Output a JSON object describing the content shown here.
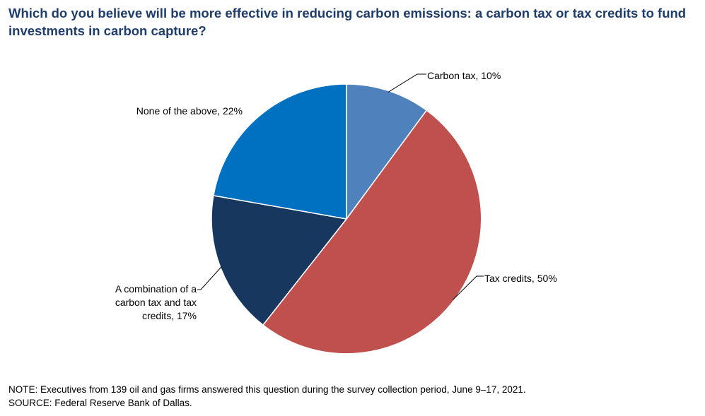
{
  "chart_data": {
    "type": "pie",
    "title": "Which do you believe will be more effective in reducing carbon emissions: a carbon tax or tax credits to fund investments in carbon capture?",
    "slices": [
      {
        "label_lines": [
          "Carbon tax, 10%"
        ],
        "value": 10,
        "color": "#4f81bd"
      },
      {
        "label_lines": [
          "Tax credits, 50%"
        ],
        "value": 50,
        "color": "#c0504d"
      },
      {
        "label_lines": [
          "A combination  of a",
          "carbon tax and tax",
          "credits, 17%"
        ],
        "value": 17,
        "color": "#17375e"
      },
      {
        "label_lines": [
          "None  of the above, 22%"
        ],
        "value": 22,
        "color": "#0070c0"
      }
    ],
    "start_angle_deg": 0,
    "direction": "clockwise",
    "legend": "none"
  },
  "notes": {
    "note": "NOTE:  Executives  from  139  oil  and  gas  firms  answered  this  question  during  the  survey  collection  period,  June  9–17,  2021.",
    "source": "SOURCE:  Federal  Reserve  Bank  of  Dallas."
  }
}
